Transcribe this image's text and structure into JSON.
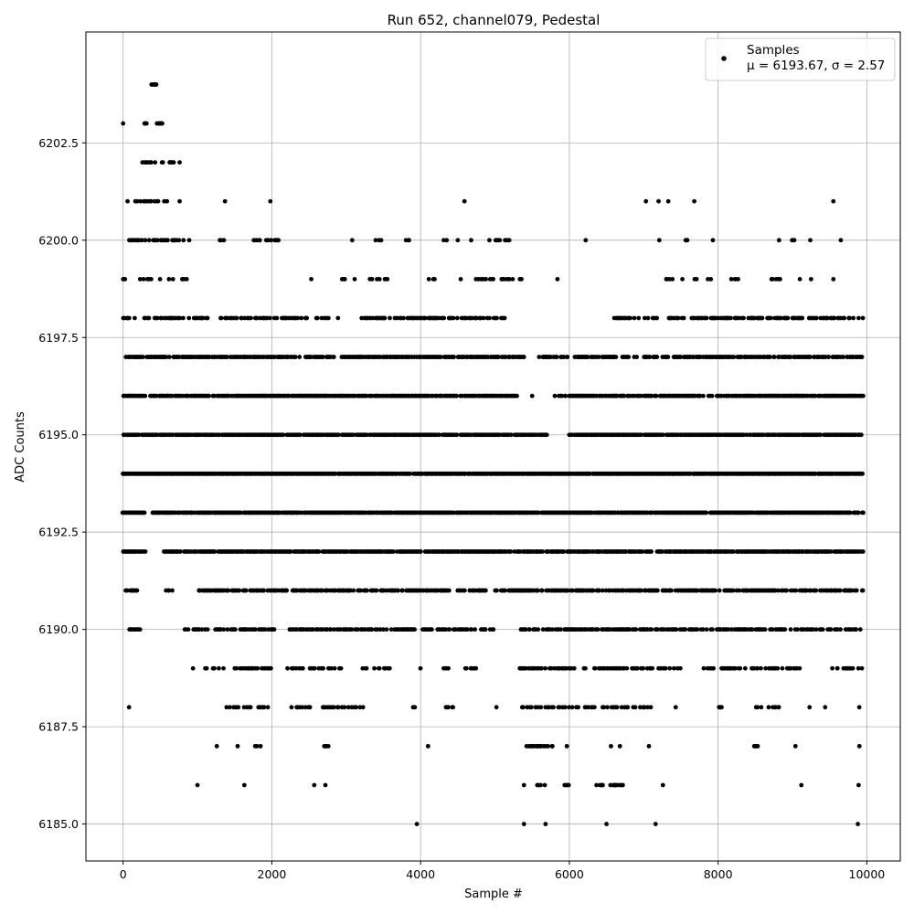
{
  "chart_data": {
    "type": "scatter",
    "title": "Run 652, channel079, Pedestal",
    "xlabel": "Sample #",
    "ylabel": "ADC Counts",
    "xlim": [
      -500,
      10450
    ],
    "ylim": [
      6184.05,
      6205.35
    ],
    "x_ticks": [
      0,
      2000,
      4000,
      6000,
      8000,
      10000
    ],
    "y_ticks": [
      6185.0,
      6187.5,
      6190.0,
      6192.5,
      6195.0,
      6197.5,
      6200.0,
      6202.5
    ],
    "x_tick_labels": [
      "0",
      "2000",
      "4000",
      "6000",
      "8000",
      "10000"
    ],
    "y_tick_labels": [
      "6185.0",
      "6187.5",
      "6190.0",
      "6192.5",
      "6195.0",
      "6197.5",
      "6200.0",
      "6202.5"
    ],
    "grid": true,
    "legend": {
      "placement": "top-right",
      "marker_color": "#000000",
      "entries": [
        {
          "label": "Samples",
          "stats": "μ = 6193.67, σ = 2.57"
        }
      ]
    },
    "marker_color": "#000000",
    "num_samples": 10000,
    "series": [
      {
        "name": "Samples",
        "levels": [
          {
            "y": 6204,
            "intervals": [
              [
                380,
                460
              ]
            ],
            "density": 1.0
          },
          {
            "y": 6203,
            "intervals": [
              [
                0,
                0
              ],
              [
                290,
                320
              ],
              [
                460,
                540
              ]
            ],
            "density": 1.0
          },
          {
            "y": 6202,
            "intervals": [
              [
                260,
                380
              ],
              [
                430,
                430
              ],
              [
                520,
                540
              ],
              [
                620,
                680
              ],
              [
                760,
                760
              ]
            ],
            "density": 0.8
          },
          {
            "y": 6201,
            "intervals": [
              [
                60,
                60
              ],
              [
                160,
                500
              ],
              [
                560,
                600
              ],
              [
                760,
                760
              ],
              [
                1370,
                1370
              ],
              [
                1980,
                1980
              ],
              [
                4590,
                4590
              ],
              [
                7030,
                7030
              ],
              [
                7200,
                7200
              ],
              [
                7330,
                7330
              ],
              [
                7680,
                7680
              ],
              [
                9550,
                9550
              ]
            ],
            "density": 0.6
          },
          {
            "y": 6200,
            "intervals": [
              [
                0,
                1000
              ],
              [
                1300,
                1400
              ],
              [
                1740,
                2100
              ],
              [
                3080,
                3080
              ],
              [
                3320,
                3540
              ],
              [
                3780,
                3860
              ],
              [
                4250,
                4400
              ],
              [
                4500,
                4500
              ],
              [
                4680,
                4680
              ],
              [
                4900,
                5200
              ],
              [
                6220,
                6220
              ],
              [
                7210,
                7210
              ],
              [
                7560,
                7650
              ],
              [
                7930,
                7930
              ],
              [
                8820,
                8820
              ],
              [
                9000,
                9060
              ],
              [
                9240,
                9240
              ],
              [
                9650,
                9650
              ]
            ],
            "density": 0.4
          },
          {
            "y": 6199,
            "intervals": [
              [
                0,
                1000
              ],
              [
                2100,
                2140
              ],
              [
                2530,
                2530
              ],
              [
                2940,
                3200
              ],
              [
                3320,
                3660
              ],
              [
                3760,
                3780
              ],
              [
                4100,
                4220
              ],
              [
                4540,
                4540
              ],
              [
                4740,
                5370
              ],
              [
                5840,
                5840
              ],
              [
                7200,
                7400
              ],
              [
                7520,
                7520
              ],
              [
                7650,
                7720
              ],
              [
                7860,
                7940
              ],
              [
                8080,
                8270
              ],
              [
                8680,
                8850
              ],
              [
                9020,
                9120
              ],
              [
                9250,
                9250
              ],
              [
                9550,
                9550
              ],
              [
                9700,
                9870
              ]
            ],
            "density": 0.3
          },
          {
            "y": 6198,
            "intervals": [
              [
                0,
                1150
              ],
              [
                1300,
                2500
              ],
              [
                2600,
                2800
              ],
              [
                2880,
                2960
              ],
              [
                3200,
                5200
              ],
              [
                6600,
                6950
              ],
              [
                7000,
                7560
              ],
              [
                7640,
                8100
              ],
              [
                8100,
                9950
              ]
            ],
            "density": 0.5
          },
          {
            "y": 6197,
            "intervals": [
              [
                0,
                2400
              ],
              [
                2440,
                2840
              ],
              [
                2940,
                5400
              ],
              [
                5600,
                6250
              ],
              [
                6300,
                6650
              ],
              [
                6700,
                6920
              ],
              [
                7000,
                9950
              ]
            ],
            "density": 0.7
          },
          {
            "y": 6196,
            "intervals": [
              [
                0,
                300
              ],
              [
                360,
                5300
              ],
              [
                5500,
                5500
              ],
              [
                5800,
                6650
              ],
              [
                6600,
                6700
              ],
              [
                6700,
                9950
              ]
            ],
            "density": 0.8
          },
          {
            "y": 6195,
            "intervals": [
              [
                0,
                5700
              ],
              [
                6000,
                9950
              ]
            ],
            "density": 0.85
          },
          {
            "y": 6194,
            "intervals": [
              [
                0,
                9950
              ]
            ],
            "density": 0.95
          },
          {
            "y": 6193,
            "intervals": [
              [
                0,
                300
              ],
              [
                400,
                9950
              ]
            ],
            "density": 0.9
          },
          {
            "y": 6192,
            "intervals": [
              [
                0,
                300
              ],
              [
                550,
                9950
              ]
            ],
            "density": 0.85
          },
          {
            "y": 6191,
            "intervals": [
              [
                40,
                200
              ],
              [
                580,
                700
              ],
              [
                1000,
                4400
              ],
              [
                4500,
                4900
              ],
              [
                5000,
                5400
              ],
              [
                5300,
                9950
              ]
            ],
            "density": 0.65
          },
          {
            "y": 6190,
            "intervals": [
              [
                80,
                250
              ],
              [
                800,
                2100
              ],
              [
                2200,
                3400
              ],
              [
                3400,
                4750
              ],
              [
                4800,
                5000
              ],
              [
                5300,
                7200
              ],
              [
                7200,
                9950
              ]
            ],
            "density": 0.55
          },
          {
            "y": 6189,
            "intervals": [
              [
                940,
                940
              ],
              [
                1070,
                2000
              ],
              [
                2200,
                2950
              ],
              [
                3200,
                3600
              ],
              [
                3900,
                4000
              ],
              [
                4300,
                4400
              ],
              [
                4600,
                4750
              ],
              [
                5300,
                7300
              ],
              [
                7350,
                7350
              ],
              [
                7400,
                7500
              ],
              [
                7800,
                8300
              ],
              [
                8350,
                9100
              ],
              [
                9500,
                9950
              ]
            ],
            "density": 0.45
          },
          {
            "y": 6188,
            "intervals": [
              [
                80,
                80
              ],
              [
                1370,
                1720
              ],
              [
                1800,
                1980
              ],
              [
                2220,
                3240
              ],
              [
                3880,
                3940
              ],
              [
                4330,
                4450
              ],
              [
                5020,
                5020
              ],
              [
                5350,
                7100
              ],
              [
                7430,
                7430
              ],
              [
                7970,
                8100
              ],
              [
                8500,
                8900
              ],
              [
                9230,
                9230
              ],
              [
                9440,
                9440
              ],
              [
                9880,
                9940
              ]
            ],
            "density": 0.35
          },
          {
            "y": 6187,
            "intervals": [
              [
                1260,
                1260
              ],
              [
                1540,
                1540
              ],
              [
                1780,
                1880
              ],
              [
                2700,
                2760
              ],
              [
                4100,
                4100
              ],
              [
                5400,
                5800
              ],
              [
                5950,
                5980
              ],
              [
                6560,
                6560
              ],
              [
                6680,
                6680
              ],
              [
                7070,
                7070
              ],
              [
                8480,
                8550
              ],
              [
                9040,
                9040
              ],
              [
                9900,
                9900
              ]
            ],
            "density": 0.6
          },
          {
            "y": 6186,
            "intervals": [
              [
                1000,
                1000
              ],
              [
                1630,
                1630
              ],
              [
                2570,
                2570
              ],
              [
                2720,
                2720
              ],
              [
                5390,
                5390
              ],
              [
                5560,
                5680
              ],
              [
                5920,
                5990
              ],
              [
                6370,
                6480
              ],
              [
                6560,
                6720
              ],
              [
                7240,
                7280
              ],
              [
                9120,
                9120
              ],
              [
                9890,
                9890
              ]
            ],
            "density": 0.6
          },
          {
            "y": 6185,
            "intervals": [
              [
                3950,
                3950
              ],
              [
                5390,
                5390
              ],
              [
                5680,
                5680
              ],
              [
                6500,
                6500
              ],
              [
                7160,
                7160
              ],
              [
                9880,
                9880
              ]
            ],
            "density": 1.0
          }
        ]
      }
    ]
  }
}
